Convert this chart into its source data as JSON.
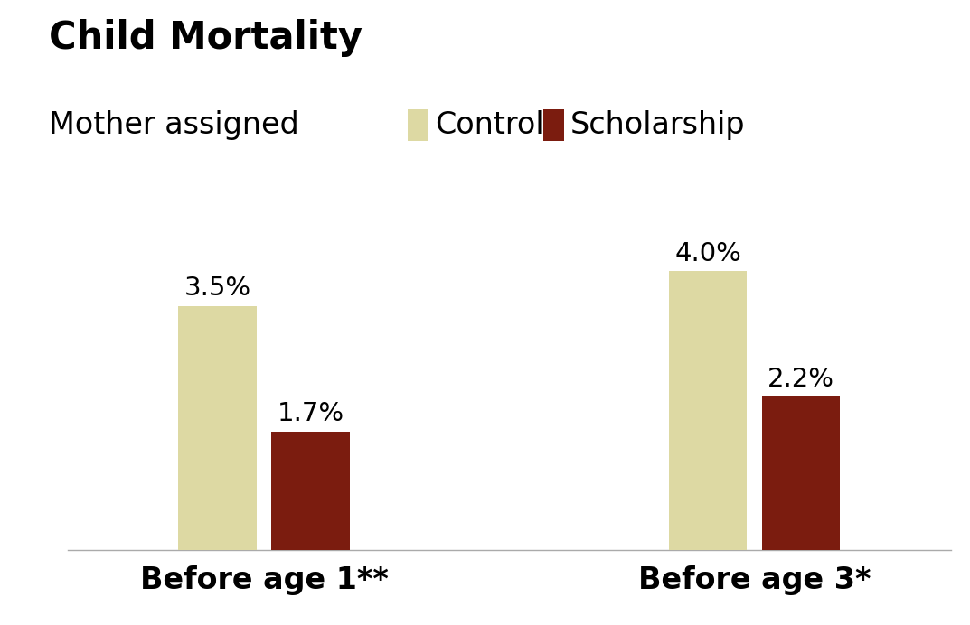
{
  "title": "Child Mortality",
  "subtitle": "Mother assigned",
  "legend_labels": [
    "Control",
    "Scholarship"
  ],
  "legend_colors": [
    "#ddd9a3",
    "#7b1c0f"
  ],
  "groups": [
    "Before age 1**",
    "Before age 3*"
  ],
  "control_values": [
    3.5,
    4.0
  ],
  "scholarship_values": [
    1.7,
    2.2
  ],
  "control_color": "#ddd9a3",
  "scholarship_color": "#7b1c0f",
  "ylim": [
    0,
    5.2
  ],
  "background_color": "#ffffff",
  "title_fontsize": 30,
  "subtitle_fontsize": 24,
  "annotation_fontsize": 21,
  "tick_fontsize": 24,
  "bar_width": 0.32,
  "group_centers": [
    1.0,
    3.0
  ]
}
